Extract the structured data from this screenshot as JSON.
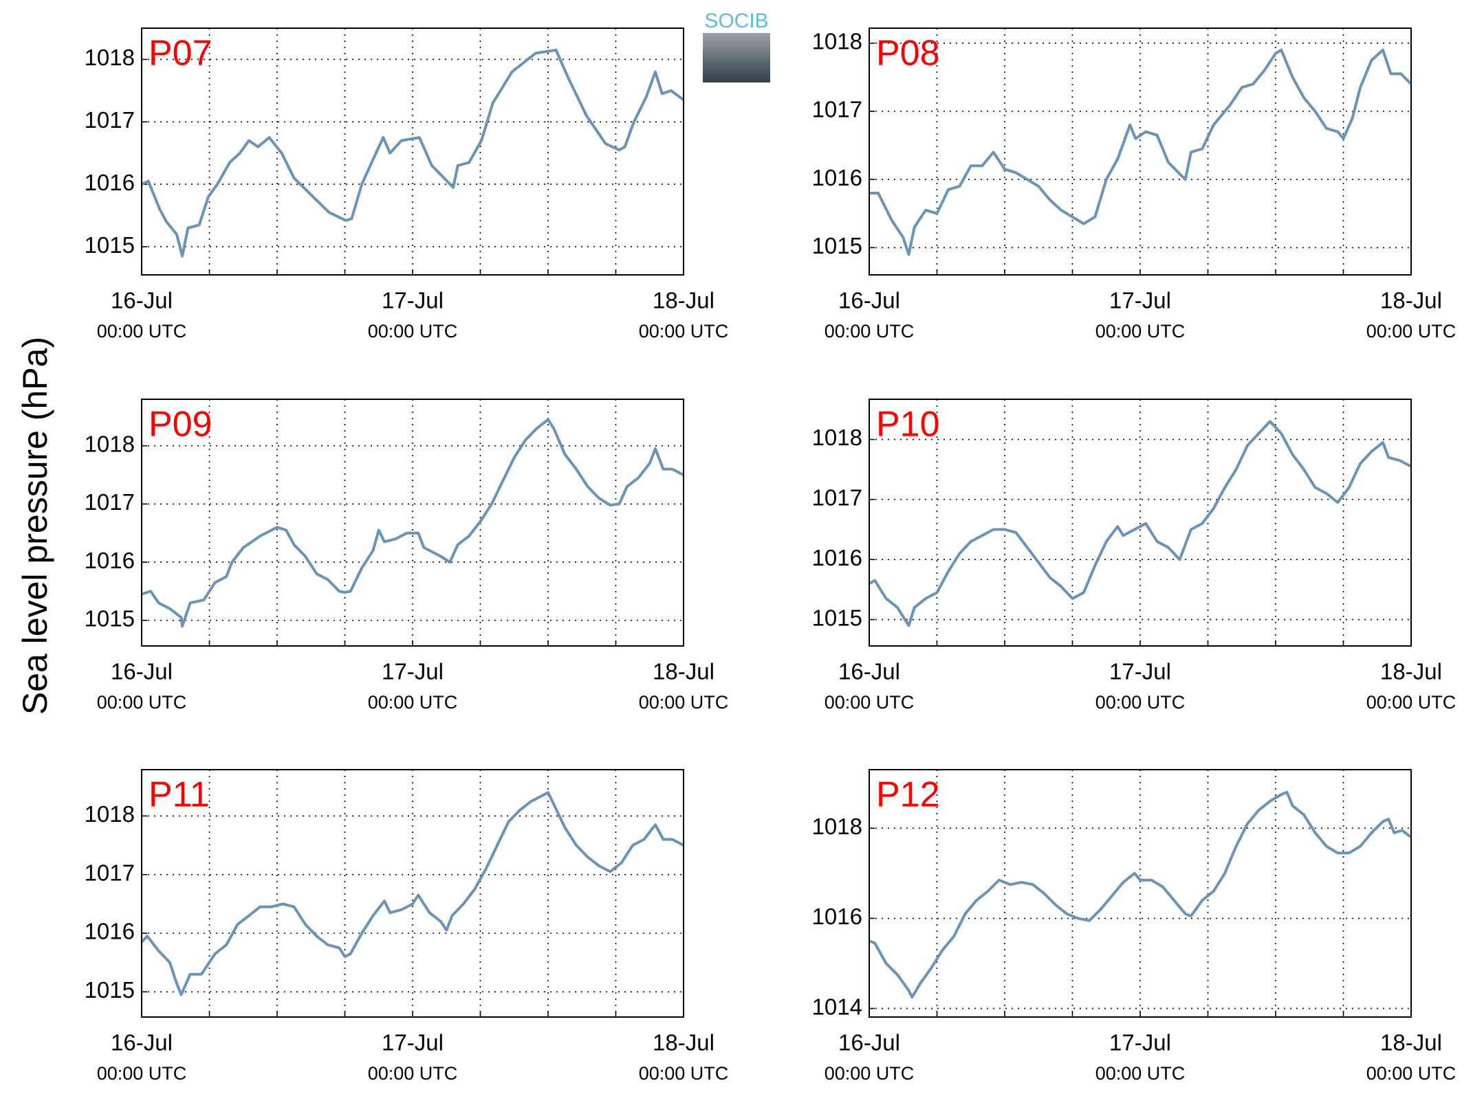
{
  "logo": "SOCIB",
  "ylabel": "Sea level pressure (hPa)",
  "chart_data": [
    {
      "type": "line",
      "title": "P07",
      "color": "#6a93b8",
      "grid": true,
      "xlim": [
        0,
        48
      ],
      "ylim": [
        1014.55,
        1018.5
      ],
      "yticks": [
        1015,
        1016,
        1017,
        1018
      ],
      "xticks": [
        {
          "value": 0,
          "label": "16-Jul",
          "sublabel": "00:00 UTC"
        },
        {
          "value": 24,
          "label": "17-Jul",
          "sublabel": "00:00 UTC"
        },
        {
          "value": 48,
          "label": "18-Jul",
          "sublabel": "00:00 UTC"
        }
      ],
      "xminor_ticks": [
        6,
        12,
        18,
        30,
        36,
        42
      ],
      "x": [
        0,
        0.6,
        1.6,
        2.2,
        3.1,
        3.6,
        4.1,
        5.1,
        5.9,
        6.7,
        7.8,
        8.7,
        9.5,
        10.3,
        11.3,
        12.4,
        13.5,
        14.9,
        16.6,
        18.1,
        18.6,
        19.5,
        20.5,
        21.4,
        22,
        23,
        24.6,
        25.7,
        27.6,
        28,
        29,
        30.1,
        31.1,
        32.8,
        34.9,
        36.7,
        37.8,
        39.4,
        41.1,
        42.3,
        42.8,
        43.6,
        44.7,
        45.5,
        46.1,
        46.9,
        48
      ],
      "values": [
        1016.0,
        1016.05,
        1015.6,
        1015.4,
        1015.2,
        1014.85,
        1015.3,
        1015.35,
        1015.8,
        1016.0,
        1016.35,
        1016.5,
        1016.7,
        1016.6,
        1016.75,
        1016.5,
        1016.1,
        1015.85,
        1015.55,
        1015.42,
        1015.45,
        1016.0,
        1016.4,
        1016.75,
        1016.5,
        1016.7,
        1016.75,
        1016.3,
        1015.95,
        1016.3,
        1016.35,
        1016.7,
        1017.3,
        1017.8,
        1018.1,
        1018.15,
        1017.7,
        1017.1,
        1016.65,
        1016.55,
        1016.6,
        1017.0,
        1017.4,
        1017.8,
        1017.45,
        1017.5,
        1017.35
      ]
    },
    {
      "type": "line",
      "title": "P08",
      "color": "#6a93b8",
      "grid": true,
      "xlim": [
        0,
        48
      ],
      "ylim": [
        1014.6,
        1018.22
      ],
      "yticks": [
        1015,
        1016,
        1017,
        1018
      ],
      "xticks": [
        {
          "value": 0,
          "label": "16-Jul",
          "sublabel": "00:00 UTC"
        },
        {
          "value": 24,
          "label": "17-Jul",
          "sublabel": "00:00 UTC"
        },
        {
          "value": 48,
          "label": "18-Jul",
          "sublabel": "00:00 UTC"
        }
      ],
      "xminor_ticks": [
        6,
        12,
        18,
        30,
        36,
        42
      ],
      "x": [
        0,
        0.8,
        2,
        3,
        3.5,
        4,
        5,
        6,
        7,
        8,
        9,
        10,
        11,
        12,
        13,
        14,
        15,
        16,
        17,
        18,
        19,
        20,
        21,
        22,
        23.1,
        23.6,
        24.5,
        25.5,
        26.5,
        28,
        28.5,
        29.5,
        30.5,
        32,
        33,
        34,
        35,
        36,
        36.5,
        37.5,
        38.5,
        39.5,
        40.5,
        41.5,
        42,
        42.8,
        43.5,
        44.5,
        45.5,
        46.2,
        47.1,
        48
      ],
      "values": [
        1015.8,
        1015.8,
        1015.4,
        1015.15,
        1014.9,
        1015.3,
        1015.55,
        1015.5,
        1015.85,
        1015.9,
        1016.2,
        1016.2,
        1016.4,
        1016.15,
        1016.1,
        1016.0,
        1015.9,
        1015.7,
        1015.55,
        1015.45,
        1015.35,
        1015.45,
        1016.0,
        1016.3,
        1016.8,
        1016.6,
        1016.7,
        1016.65,
        1016.25,
        1016.0,
        1016.4,
        1016.45,
        1016.8,
        1017.1,
        1017.35,
        1017.4,
        1017.6,
        1017.85,
        1017.9,
        1017.5,
        1017.2,
        1017.0,
        1016.75,
        1016.7,
        1016.6,
        1016.9,
        1017.35,
        1017.75,
        1017.9,
        1017.55,
        1017.55,
        1017.4
      ]
    },
    {
      "type": "line",
      "title": "P09",
      "color": "#6a93b8",
      "grid": true,
      "xlim": [
        0,
        48
      ],
      "ylim": [
        1014.56,
        1018.8
      ],
      "yticks": [
        1015,
        1016,
        1017,
        1018
      ],
      "xticks": [
        {
          "value": 0,
          "label": "16-Jul",
          "sublabel": "00:00 UTC"
        },
        {
          "value": 24,
          "label": "17-Jul",
          "sublabel": "00:00 UTC"
        },
        {
          "value": 48,
          "label": "18-Jul",
          "sublabel": "00:00 UTC"
        }
      ],
      "xminor_ticks": [
        6,
        12,
        18,
        30,
        36,
        42
      ],
      "x": [
        0,
        0.8,
        1.5,
        2.5,
        3.5,
        3.6,
        4.3,
        5.5,
        6.5,
        7.5,
        8,
        9,
        10.5,
        11.5,
        12,
        12.8,
        13.5,
        14.5,
        15.5,
        16.5,
        17.5,
        18,
        18.5,
        19.5,
        20.5,
        21,
        21.5,
        22.5,
        23.5,
        24.5,
        25,
        26.5,
        27.3,
        28,
        29,
        30,
        31,
        32,
        33,
        34,
        35,
        36,
        36.5,
        37.5,
        38.5,
        39.5,
        40.5,
        41.5,
        42.3,
        43,
        44,
        45,
        45.5,
        46.2,
        47,
        48
      ],
      "values": [
        1015.45,
        1015.5,
        1015.3,
        1015.2,
        1015.05,
        1014.9,
        1015.3,
        1015.35,
        1015.65,
        1015.75,
        1016.0,
        1016.25,
        1016.45,
        1016.55,
        1016.6,
        1016.55,
        1016.3,
        1016.1,
        1015.8,
        1015.7,
        1015.5,
        1015.48,
        1015.5,
        1015.9,
        1016.2,
        1016.55,
        1016.35,
        1016.4,
        1016.5,
        1016.5,
        1016.25,
        1016.1,
        1016.0,
        1016.3,
        1016.45,
        1016.7,
        1017.0,
        1017.4,
        1017.8,
        1018.1,
        1018.3,
        1018.45,
        1018.3,
        1017.85,
        1017.6,
        1017.3,
        1017.1,
        1016.98,
        1017.0,
        1017.3,
        1017.45,
        1017.7,
        1017.95,
        1017.6,
        1017.6,
        1017.5
      ]
    },
    {
      "type": "line",
      "title": "P10",
      "color": "#6a93b8",
      "grid": true,
      "xlim": [
        0,
        48
      ],
      "ylim": [
        1014.56,
        1018.67
      ],
      "yticks": [
        1015,
        1016,
        1017,
        1018
      ],
      "xticks": [
        {
          "value": 0,
          "label": "16-Jul",
          "sublabel": "00:00 UTC"
        },
        {
          "value": 24,
          "label": "17-Jul",
          "sublabel": "00:00 UTC"
        },
        {
          "value": 48,
          "label": "18-Jul",
          "sublabel": "00:00 UTC"
        }
      ],
      "xminor_ticks": [
        6,
        12,
        18,
        30,
        36,
        42
      ],
      "x": [
        0,
        0.5,
        1.5,
        2.5,
        3.5,
        4,
        5,
        6,
        7,
        8,
        9,
        10,
        11,
        12,
        13,
        14,
        15,
        16,
        17,
        18,
        19,
        20,
        21,
        22,
        22.5,
        23.5,
        24.5,
        25.5,
        26.5,
        27.5,
        28.5,
        29.5,
        30.5,
        31.5,
        32.5,
        33.5,
        34.5,
        35.5,
        36.5,
        37.5,
        38.5,
        39.5,
        40.5,
        41.5,
        42.5,
        43.5,
        44.5,
        45.5,
        46,
        47,
        48
      ],
      "values": [
        1015.6,
        1015.65,
        1015.35,
        1015.2,
        1014.9,
        1015.2,
        1015.35,
        1015.45,
        1015.8,
        1016.1,
        1016.3,
        1016.4,
        1016.5,
        1016.5,
        1016.45,
        1016.2,
        1015.95,
        1015.7,
        1015.55,
        1015.35,
        1015.45,
        1015.9,
        1016.3,
        1016.55,
        1016.4,
        1016.5,
        1016.6,
        1016.3,
        1016.2,
        1016.0,
        1016.5,
        1016.6,
        1016.85,
        1017.2,
        1017.5,
        1017.9,
        1018.1,
        1018.3,
        1018.1,
        1017.75,
        1017.5,
        1017.2,
        1017.1,
        1016.95,
        1017.2,
        1017.6,
        1017.8,
        1017.95,
        1017.7,
        1017.65,
        1017.55
      ]
    },
    {
      "type": "line",
      "title": "P11",
      "color": "#6a93b8",
      "grid": true,
      "xlim": [
        0,
        48
      ],
      "ylim": [
        1014.57,
        1018.79
      ],
      "yticks": [
        1015,
        1016,
        1017,
        1018
      ],
      "xticks": [
        {
          "value": 0,
          "label": "16-Jul",
          "sublabel": "00:00 UTC"
        },
        {
          "value": 24,
          "label": "17-Jul",
          "sublabel": "00:00 UTC"
        },
        {
          "value": 48,
          "label": "18-Jul",
          "sublabel": "00:00 UTC"
        }
      ],
      "xminor_ticks": [
        6,
        12,
        18,
        30,
        36,
        42
      ],
      "x": [
        0,
        0.5,
        1.5,
        2.5,
        3,
        3.5,
        4.3,
        5.3,
        6.5,
        7.5,
        8.5,
        9.5,
        10.5,
        11.5,
        12.5,
        13.5,
        14.5,
        15.5,
        16.5,
        17.5,
        18,
        18.5,
        19.5,
        20.5,
        21.5,
        22,
        23,
        24,
        24.5,
        25.5,
        26.5,
        27,
        27.5,
        28.5,
        29.5,
        30.5,
        31.5,
        32.5,
        33.5,
        34.5,
        36,
        36.5,
        37.5,
        38.5,
        39.5,
        40.5,
        41.5,
        42.5,
        43.5,
        44.5,
        45.5,
        46.2,
        47,
        48
      ],
      "values": [
        1015.85,
        1015.95,
        1015.7,
        1015.5,
        1015.2,
        1014.95,
        1015.3,
        1015.3,
        1015.65,
        1015.8,
        1016.15,
        1016.3,
        1016.45,
        1016.45,
        1016.5,
        1016.45,
        1016.15,
        1015.95,
        1015.8,
        1015.75,
        1015.6,
        1015.65,
        1016.0,
        1016.3,
        1016.55,
        1016.35,
        1016.4,
        1016.5,
        1016.65,
        1016.35,
        1016.2,
        1016.05,
        1016.3,
        1016.5,
        1016.75,
        1017.1,
        1017.5,
        1017.9,
        1018.1,
        1018.25,
        1018.4,
        1018.2,
        1017.8,
        1017.5,
        1017.3,
        1017.15,
        1017.05,
        1017.2,
        1017.5,
        1017.6,
        1017.85,
        1017.6,
        1017.6,
        1017.5
      ]
    },
    {
      "type": "line",
      "title": "P12",
      "color": "#6a93b8",
      "grid": true,
      "xlim": [
        0,
        48
      ],
      "ylim": [
        1013.81,
        1019.3
      ],
      "yticks": [
        1014,
        1016,
        1018
      ],
      "xticks": [
        {
          "value": 0,
          "label": "16-Jul",
          "sublabel": "00:00 UTC"
        },
        {
          "value": 24,
          "label": "17-Jul",
          "sublabel": "00:00 UTC"
        },
        {
          "value": 48,
          "label": "18-Jul",
          "sublabel": "00:00 UTC"
        }
      ],
      "xminor_ticks": [
        6,
        12,
        18,
        30,
        36,
        42
      ],
      "x": [
        0,
        0.5,
        1.5,
        2.5,
        3.5,
        3.8,
        4.5,
        5.5,
        6.5,
        7.5,
        8.5,
        9.5,
        10.5,
        11.5,
        12.5,
        13.5,
        14.5,
        15.5,
        16.5,
        17.5,
        18.5,
        19.5,
        20.5,
        21.5,
        22.5,
        23.5,
        24,
        25,
        26,
        27,
        28,
        28.5,
        29.5,
        30.5,
        31.5,
        32.5,
        33.5,
        34.5,
        35.5,
        36.5,
        37,
        37.5,
        38.5,
        39.5,
        40.5,
        41.5,
        42.5,
        43.5,
        44.5,
        45.5,
        46,
        46.5,
        47.2,
        48
      ],
      "values": [
        1015.5,
        1015.45,
        1015.0,
        1014.75,
        1014.4,
        1014.25,
        1014.55,
        1014.9,
        1015.3,
        1015.6,
        1016.1,
        1016.4,
        1016.6,
        1016.85,
        1016.75,
        1016.8,
        1016.75,
        1016.55,
        1016.3,
        1016.1,
        1016.0,
        1015.95,
        1016.2,
        1016.5,
        1016.8,
        1017.0,
        1016.85,
        1016.85,
        1016.7,
        1016.4,
        1016.1,
        1016.05,
        1016.4,
        1016.6,
        1017.0,
        1017.6,
        1018.1,
        1018.4,
        1018.6,
        1018.75,
        1018.8,
        1018.5,
        1018.3,
        1017.9,
        1017.6,
        1017.45,
        1017.45,
        1017.6,
        1017.9,
        1018.15,
        1018.2,
        1017.9,
        1017.95,
        1017.8
      ]
    }
  ]
}
